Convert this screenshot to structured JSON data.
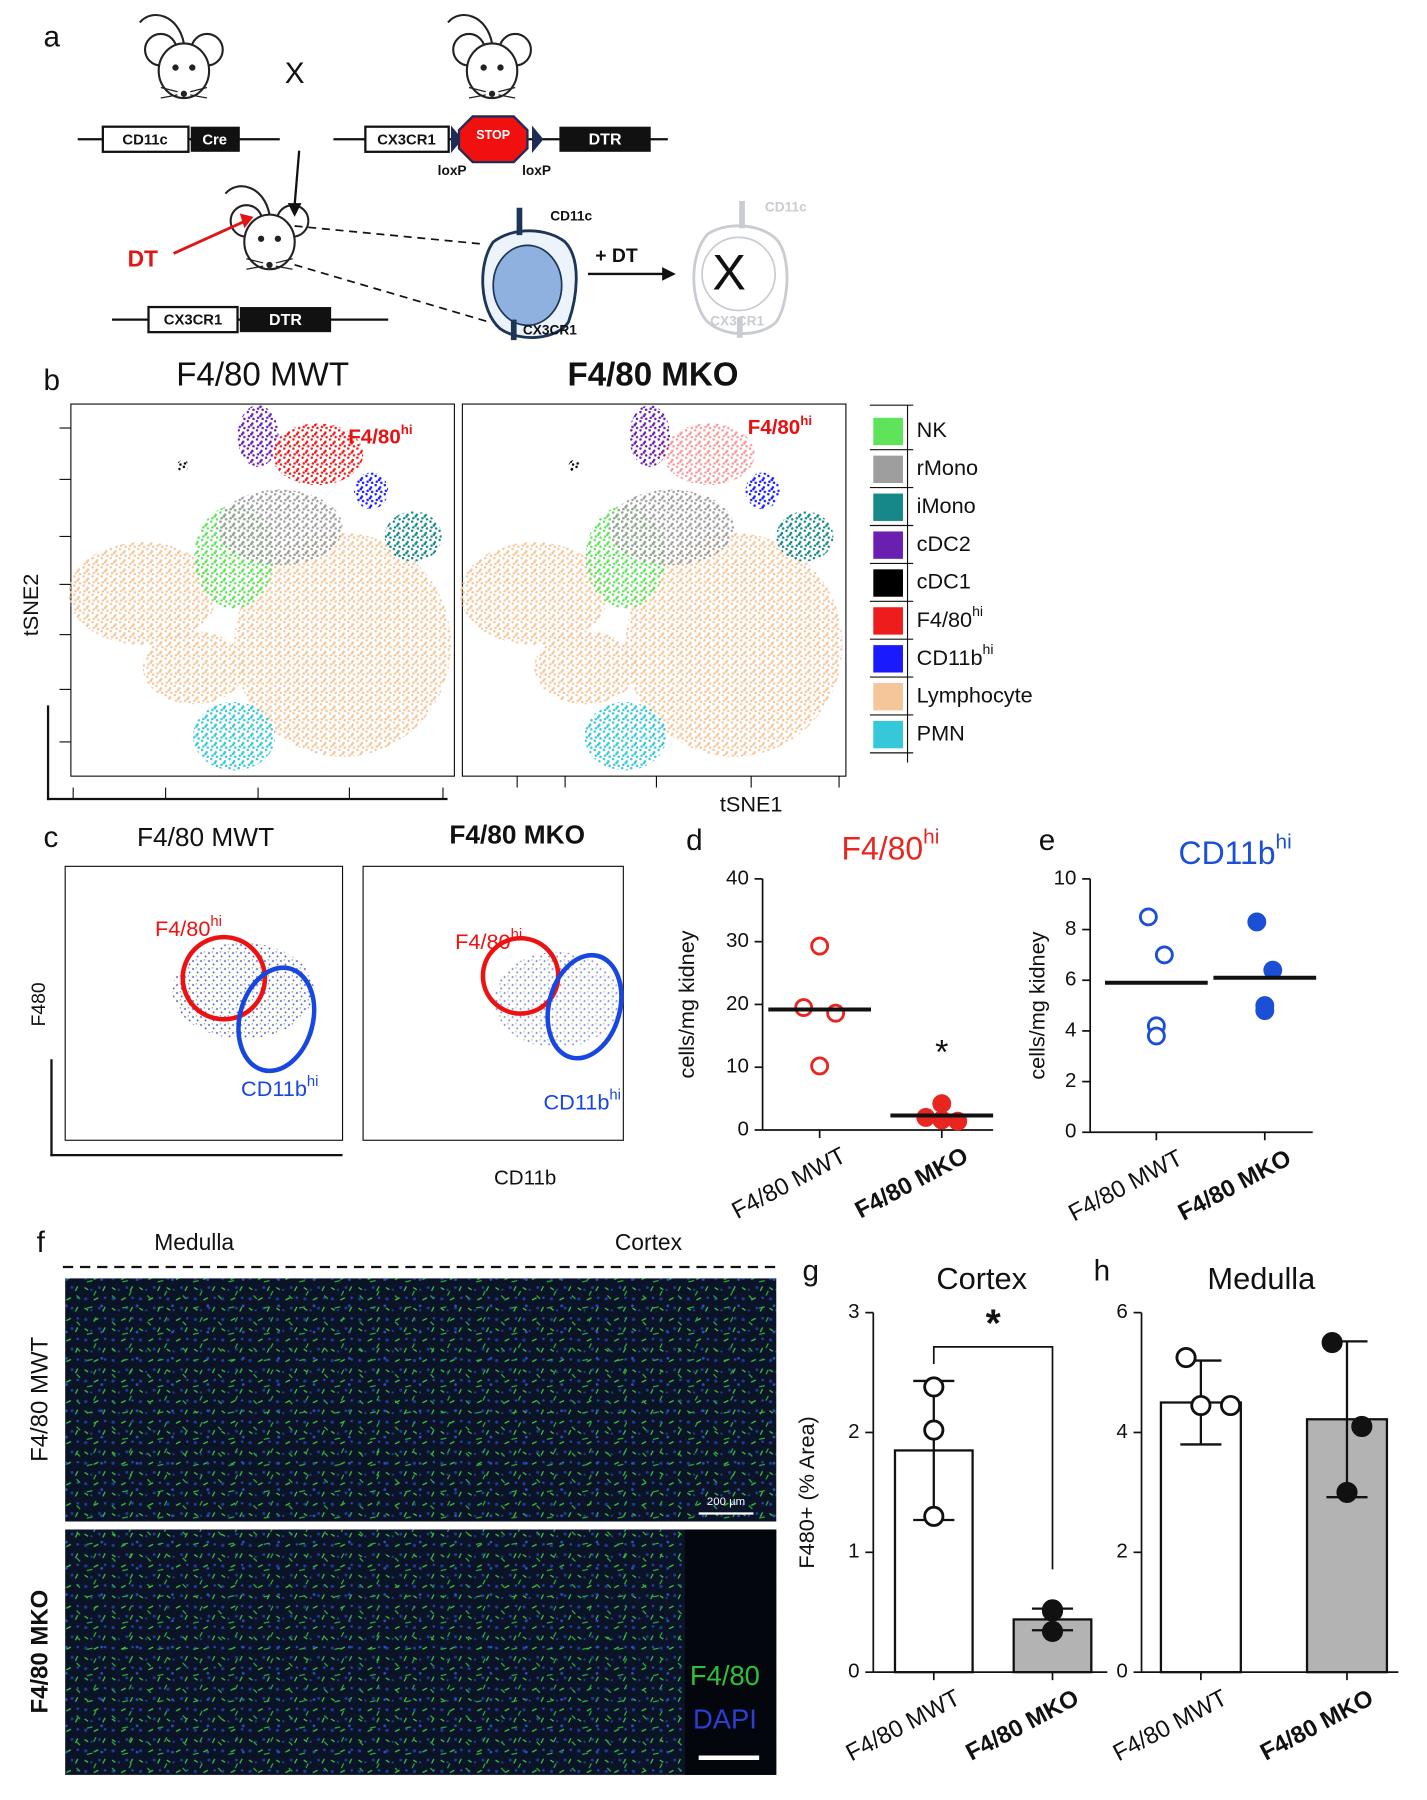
{
  "panel_labels": [
    "a",
    "b",
    "c",
    "d",
    "e",
    "f",
    "g",
    "h"
  ],
  "panel_a": {
    "cross": "X",
    "gene1": [
      "CD11c",
      "Cre"
    ],
    "gene2": [
      "CX3CR1",
      "STOP",
      "DTR"
    ],
    "loxp": [
      "loxP",
      "loxP"
    ],
    "dt": "DT",
    "gene3": [
      "CX3CR1",
      "DTR"
    ],
    "cell_markers": [
      "CD11c",
      "CX3CR1"
    ],
    "plus_dt": "+ DT",
    "ablated": "X",
    "ablated_markers": [
      "CD11c",
      "CX3CR1"
    ]
  },
  "panel_b": {
    "titles": [
      "F4/80 MWT",
      "F4/80 MKO"
    ],
    "cluster_label": {
      "base": "F4/80",
      "sup": "hi"
    },
    "y_label": "tSNE2",
    "x_label": "tSNE1",
    "legend": [
      {
        "name": "NK",
        "color": "#5ee35a"
      },
      {
        "name": "rMono",
        "color": "#9e9e9e"
      },
      {
        "name": "iMono",
        "color": "#17888a"
      },
      {
        "name": "cDC2",
        "color": "#6a1fb0"
      },
      {
        "name": "cDC1",
        "color": "#000000"
      },
      {
        "name": "F4/80",
        "sup": "hi",
        "color": "#ee1c1c"
      },
      {
        "name": "CD11b",
        "sup": "hi",
        "color": "#1a1aff"
      },
      {
        "name": "Lymphocyte",
        "color": "#f5c69a"
      },
      {
        "name": "PMN",
        "color": "#35c8d8"
      }
    ]
  },
  "panel_c": {
    "titles": [
      "F4/80 MWT",
      "F4/80 MKO"
    ],
    "gate_f480": {
      "base": "F4/80",
      "sup": "hi"
    },
    "gate_cd11b": {
      "base": "CD11b",
      "sup": "hi"
    },
    "y_label": "F480",
    "x_label": "CD11b"
  },
  "panel_f": {
    "regions": [
      "Medulla",
      "Cortex"
    ],
    "rows": [
      "F4/80 MWT",
      "F4/80 MKO"
    ],
    "scale_bar": "200 µm",
    "stains": [
      "F4/80",
      "DAPI"
    ]
  },
  "chart_data": [
    {
      "type": "dot",
      "title": {
        "base": "F4/80",
        "sup": "hi"
      },
      "title_color": "#e8251f",
      "y_label": "cells/mg kidney",
      "categories": [
        "F4/80 MWT",
        "F4/80 MKO"
      ],
      "groups": [
        {
          "values": [
            29.3,
            19.5,
            18.6,
            10.2
          ],
          "center": 19.2,
          "color": "#e8251f",
          "filled": false
        },
        {
          "values": [
            4.2,
            2.0,
            1.4,
            1.6
          ],
          "center": 2.3,
          "color": "#e8251f",
          "filled": true
        }
      ],
      "ylim": [
        0,
        40
      ],
      "yticks": [
        0,
        10,
        20,
        30,
        40
      ],
      "annotation": "*"
    },
    {
      "type": "dot",
      "title": {
        "base": "CD11b",
        "sup": "hi"
      },
      "title_color": "#1a4fd6",
      "y_label": "cells/mg kidney",
      "categories": [
        "F4/80 MWT",
        "F4/80 MKO"
      ],
      "groups": [
        {
          "values": [
            8.5,
            7.0,
            4.2,
            3.8
          ],
          "center": 5.9,
          "color": "#1a4fd6",
          "filled": false
        },
        {
          "values": [
            8.3,
            6.4,
            5.0,
            4.8
          ],
          "center": 6.1,
          "color": "#1a4fd6",
          "filled": true
        }
      ],
      "ylim": [
        0,
        10
      ],
      "yticks": [
        0,
        2,
        4,
        6,
        8,
        10
      ]
    },
    {
      "type": "bar",
      "title": "Cortex",
      "y_label": "F480+ (% Area)",
      "categories": [
        "F4/80 MWT",
        "F4/80 MKO"
      ],
      "values": [
        1.85,
        0.44
      ],
      "errors": [
        0.58,
        0.09
      ],
      "points": [
        [
          2.38,
          2.02,
          1.3
        ],
        [
          0.52,
          0.51,
          0.34
        ]
      ],
      "colors": [
        "#ffffff",
        "#b3b3b3"
      ],
      "ylim": [
        0,
        3
      ],
      "yticks": [
        0,
        1,
        2,
        3
      ],
      "annotation": "*"
    },
    {
      "type": "bar",
      "title": "Medulla",
      "categories": [
        "F4/80 MWT",
        "F4/80 MKO"
      ],
      "values": [
        4.5,
        4.22
      ],
      "errors": [
        0.7,
        1.3
      ],
      "points": [
        [
          5.25,
          4.45,
          4.45
        ],
        [
          5.5,
          4.1,
          3.0
        ]
      ],
      "colors": [
        "#ffffff",
        "#b3b3b3"
      ],
      "ylim": [
        0,
        6
      ],
      "yticks": [
        0,
        2,
        4,
        6
      ]
    }
  ]
}
